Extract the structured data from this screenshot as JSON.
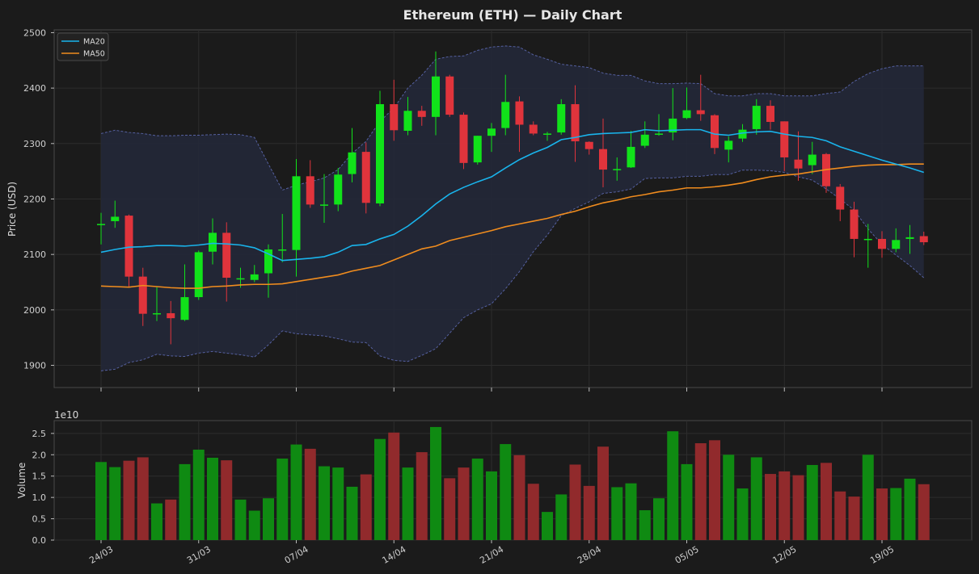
{
  "colors": {
    "up": "#11e21a",
    "down": "#e0343c",
    "vol_up": "#0f8a12",
    "vol_down": "#912a2c",
    "ma20": "#19b4ec",
    "ma50": "#f08c1e",
    "band": "#5560a0",
    "bg": "#1b1b1b"
  },
  "chart_data": [
    {
      "type": "candlestick",
      "title": "Ethereum (ETH) — Daily Chart",
      "ylabel": "Price (USD)",
      "ylim": [
        1860,
        2505
      ],
      "yticks": [
        1900,
        2000,
        2100,
        2200,
        2300,
        2400,
        2500
      ],
      "xticks": [
        "24/03",
        "31/03",
        "07/04",
        "14/04",
        "21/04",
        "28/04",
        "05/05",
        "12/05",
        "19/05"
      ],
      "legend": {
        "position": "top-left",
        "entries": [
          "MA20",
          "MA50"
        ]
      },
      "grid": true,
      "candles": [
        [
          2155,
          2155,
          2175,
          2118
        ],
        [
          2160,
          2168,
          2197,
          2148
        ],
        [
          2170,
          2060,
          2172,
          2040
        ],
        [
          2060,
          1993,
          2076,
          1971
        ],
        [
          1994,
          1994,
          2041,
          1980
        ],
        [
          1994,
          1985,
          2016,
          1938
        ],
        [
          1982,
          2023,
          2082,
          1980
        ],
        [
          2023,
          2104,
          2107,
          2018
        ],
        [
          2105,
          2139,
          2165,
          2082
        ],
        [
          2139,
          2058,
          2158,
          2015
        ],
        [
          2057,
          2057,
          2076,
          2040
        ],
        [
          2054,
          2064,
          2081,
          2050
        ],
        [
          2066,
          2109,
          2118,
          2022
        ],
        [
          2109,
          2109,
          2173,
          2086
        ],
        [
          2108,
          2241,
          2272,
          2060
        ],
        [
          2241,
          2190,
          2270,
          2184
        ],
        [
          2190,
          2190,
          2245,
          2157
        ],
        [
          2190,
          2244,
          2256,
          2178
        ],
        [
          2245,
          2284,
          2328,
          2230
        ],
        [
          2285,
          2193,
          2302,
          2174
        ],
        [
          2192,
          2371,
          2395,
          2187
        ],
        [
          2371,
          2324,
          2415,
          2305
        ],
        [
          2323,
          2359,
          2384,
          2315
        ],
        [
          2359,
          2348,
          2368,
          2332
        ],
        [
          2348,
          2421,
          2466,
          2315
        ],
        [
          2421,
          2352,
          2424,
          2348
        ],
        [
          2352,
          2265,
          2356,
          2254
        ],
        [
          2266,
          2314,
          2314,
          2262
        ],
        [
          2314,
          2327,
          2337,
          2285
        ],
        [
          2328,
          2375,
          2424,
          2315
        ],
        [
          2376,
          2334,
          2385,
          2285
        ],
        [
          2334,
          2318,
          2340,
          2315
        ],
        [
          2318,
          2318,
          2321,
          2305
        ],
        [
          2320,
          2371,
          2380,
          2316
        ],
        [
          2371,
          2304,
          2405,
          2267
        ],
        [
          2303,
          2290,
          2304,
          2280
        ],
        [
          2290,
          2253,
          2345,
          2221
        ],
        [
          2254,
          2254,
          2275,
          2233
        ],
        [
          2257,
          2294,
          2323,
          2256
        ],
        [
          2296,
          2316,
          2340,
          2292
        ],
        [
          2318,
          2318,
          2353,
          2314
        ],
        [
          2320,
          2345,
          2400,
          2306
        ],
        [
          2346,
          2360,
          2401,
          2344
        ],
        [
          2360,
          2353,
          2424,
          2341
        ],
        [
          2351,
          2292,
          2353,
          2281
        ],
        [
          2289,
          2305,
          2313,
          2266
        ],
        [
          2309,
          2325,
          2335,
          2303
        ],
        [
          2326,
          2368,
          2380,
          2316
        ],
        [
          2368,
          2339,
          2378,
          2325
        ],
        [
          2340,
          2275,
          2340,
          2250
        ],
        [
          2271,
          2255,
          2322,
          2233
        ],
        [
          2261,
          2280,
          2303,
          2245
        ],
        [
          2281,
          2223,
          2283,
          2211
        ],
        [
          2222,
          2181,
          2227,
          2160
        ],
        [
          2181,
          2128,
          2195,
          2095
        ],
        [
          2128,
          2128,
          2155,
          2076
        ],
        [
          2128,
          2110,
          2142,
          2094
        ],
        [
          2110,
          2126,
          2147,
          2104
        ],
        [
          2128,
          2131,
          2153,
          2101
        ],
        [
          2133,
          2122,
          2141,
          2117
        ]
      ],
      "ma20": [
        2104,
        2109,
        2113,
        2114,
        2116,
        2116,
        2115,
        2117,
        2120,
        2119,
        2117,
        2112,
        2101,
        2089,
        2091,
        2093,
        2096,
        2104,
        2116,
        2118,
        2128,
        2136,
        2151,
        2170,
        2191,
        2209,
        2221,
        2231,
        2240,
        2256,
        2271,
        2283,
        2293,
        2307,
        2311,
        2316,
        2318,
        2319,
        2320,
        2325,
        2323,
        2324,
        2325,
        2325,
        2317,
        2315,
        2319,
        2321,
        2322,
        2317,
        2313,
        2311,
        2305,
        2294,
        2286,
        2278,
        2270,
        2263,
        2256,
        2248
      ],
      "ma50": [
        2043,
        2042,
        2041,
        2044,
        2042,
        2040,
        2039,
        2039,
        2042,
        2043,
        2045,
        2046,
        2046,
        2047,
        2051,
        2055,
        2059,
        2063,
        2070,
        2075,
        2080,
        2090,
        2100,
        2110,
        2115,
        2125,
        2131,
        2137,
        2143,
        2150,
        2155,
        2160,
        2165,
        2172,
        2178,
        2186,
        2193,
        2198,
        2204,
        2208,
        2213,
        2216,
        2220,
        2220,
        2222,
        2225,
        2229,
        2235,
        2240,
        2243,
        2245,
        2249,
        2253,
        2256,
        2259,
        2261,
        2262,
        2262,
        2263,
        2263
      ],
      "upper": [
        2318,
        2324,
        2320,
        2318,
        2314,
        2314,
        2315,
        2315,
        2316,
        2317,
        2316,
        2311,
        2263,
        2216,
        2225,
        2231,
        2238,
        2253,
        2282,
        2304,
        2340,
        2364,
        2400,
        2423,
        2452,
        2457,
        2458,
        2468,
        2474,
        2476,
        2474,
        2460,
        2452,
        2443,
        2440,
        2437,
        2427,
        2423,
        2423,
        2413,
        2408,
        2408,
        2409,
        2408,
        2390,
        2386,
        2386,
        2390,
        2390,
        2386,
        2386,
        2386,
        2390,
        2393,
        2412,
        2426,
        2435,
        2440,
        2440,
        2440
      ],
      "lower": [
        1890,
        1893,
        1905,
        1910,
        1920,
        1917,
        1916,
        1922,
        1925,
        1922,
        1919,
        1915,
        1937,
        1962,
        1957,
        1955,
        1953,
        1948,
        1942,
        1941,
        1917,
        1909,
        1907,
        1918,
        1930,
        1958,
        1986,
        2000,
        2011,
        2038,
        2069,
        2105,
        2135,
        2170,
        2183,
        2195,
        2210,
        2213,
        2218,
        2237,
        2238,
        2238,
        2241,
        2241,
        2244,
        2244,
        2252,
        2252,
        2251,
        2248,
        2240,
        2234,
        2218,
        2200,
        2180,
        2146,
        2118,
        2099,
        2080,
        2058
      ]
    },
    {
      "type": "bar",
      "ylabel": "Volume",
      "exponent_label": "1e10",
      "ylim": [
        0,
        2.8
      ],
      "yticks": [
        "0.0",
        "0.5",
        "1.0",
        "1.5",
        "2.0",
        "2.5"
      ],
      "xticks": [
        "24/03",
        "31/03",
        "07/04",
        "14/04",
        "21/04",
        "28/04",
        "05/05",
        "12/05",
        "19/05"
      ],
      "values": [
        1.83,
        1.71,
        1.86,
        1.94,
        0.86,
        0.95,
        1.78,
        2.12,
        1.93,
        1.87,
        0.95,
        0.69,
        0.98,
        1.91,
        2.24,
        2.14,
        1.73,
        1.7,
        1.25,
        1.54,
        2.37,
        2.52,
        1.7,
        2.06,
        2.65,
        1.45,
        1.7,
        1.91,
        1.61,
        2.25,
        1.99,
        1.32,
        0.66,
        1.07,
        1.77,
        1.27,
        2.19,
        1.24,
        1.33,
        0.7,
        0.98,
        2.55,
        1.78,
        2.27,
        2.34,
        2.0,
        1.21,
        1.94,
        1.55,
        1.61,
        1.52,
        1.76,
        1.81,
        1.14,
        1.02,
        2.0,
        1.21,
        1.22,
        1.44,
        1.31
      ]
    }
  ]
}
